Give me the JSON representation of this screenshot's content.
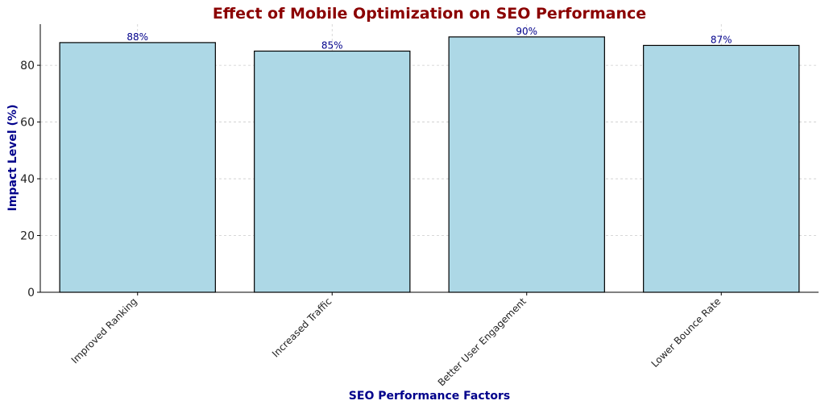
{
  "chart_data": {
    "type": "bar",
    "title": "Effect of Mobile Optimization on SEO Performance",
    "xlabel": "SEO Performance Factors",
    "ylabel": "Impact Level (%)",
    "categories": [
      "Improved Ranking",
      "Increased Traffic",
      "Better User Engagement",
      "Lower Bounce Rate"
    ],
    "values": [
      88,
      85,
      90,
      87
    ],
    "data_labels": [
      "88%",
      "85%",
      "90%",
      "87%"
    ],
    "ylim": [
      0,
      94.5
    ],
    "yticks": [
      0,
      20,
      40,
      60,
      80
    ],
    "ytick_labels": [
      "0",
      "20",
      "40",
      "60",
      "80"
    ],
    "grid": true,
    "colors": {
      "bar_fill": "#add8e6",
      "bar_edge": "#000000",
      "title": "#8b0000",
      "axis_label": "#00008b",
      "data_label": "#00008b",
      "grid": "#cccccc"
    }
  }
}
